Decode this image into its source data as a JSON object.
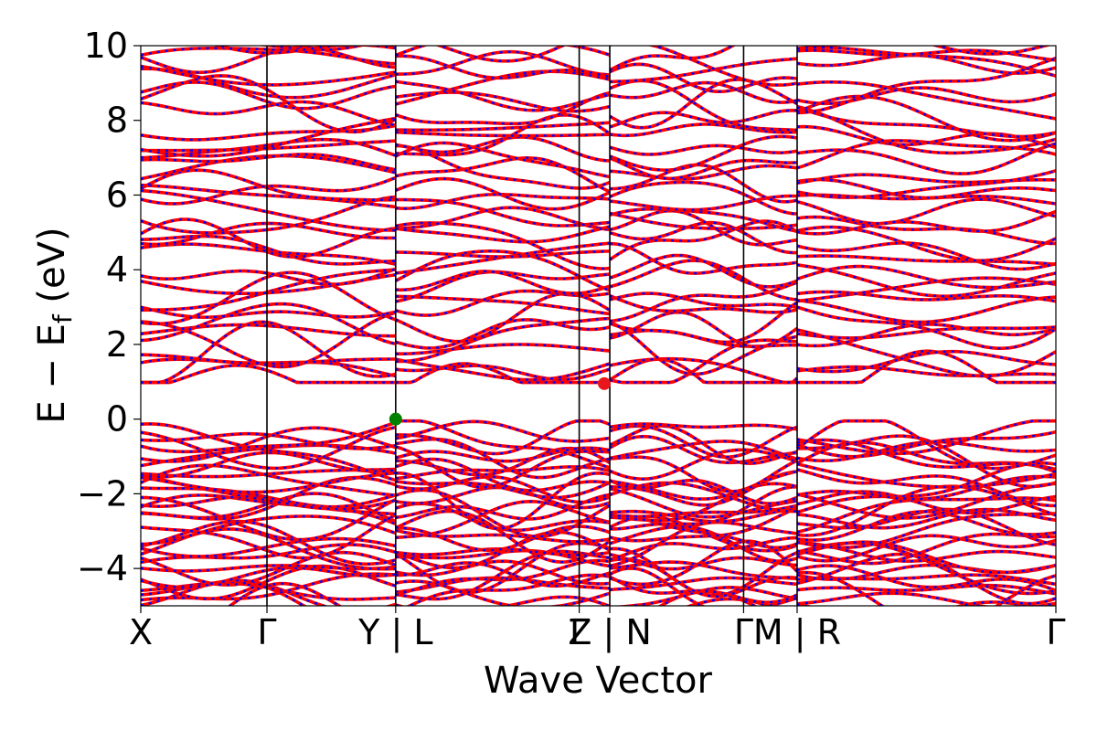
{
  "chart_data": {
    "type": "line",
    "title": "",
    "xlabel": "Wave Vector",
    "ylabel": "E − E",
    "ylabel_subscript": "f",
    "ylabel_unit": " (eV)",
    "ylim": [
      -5,
      10
    ],
    "yticks": [
      {
        "value": -4,
        "label": "−4"
      },
      {
        "value": -2,
        "label": "−2"
      },
      {
        "value": 0,
        "label": "0"
      },
      {
        "value": 2,
        "label": "2"
      },
      {
        "value": 4,
        "label": "4"
      },
      {
        "value": 6,
        "label": "6"
      },
      {
        "value": 8,
        "label": "8"
      },
      {
        "value": 10,
        "label": "10"
      }
    ],
    "kpath": {
      "range": [
        0,
        7.18
      ],
      "segment_breaks": [
        2.0,
        3.68,
        5.15
      ],
      "ticks": [
        {
          "pos": 0.0,
          "label": "X"
        },
        {
          "pos": 0.99,
          "label": "Γ"
        },
        {
          "pos": 2.0,
          "label": "Y | L"
        },
        {
          "pos": 3.44,
          "label": "Γ"
        },
        {
          "pos": 3.68,
          "label": "Z | N"
        },
        {
          "pos": 4.73,
          "label": "Γ"
        },
        {
          "pos": 5.15,
          "label": "M | R"
        },
        {
          "pos": 7.18,
          "label": "Γ"
        }
      ]
    },
    "series": [
      {
        "color": "#ff0000",
        "style": "solid"
      },
      {
        "color": "#0000ff",
        "style": "dotted"
      }
    ],
    "band_edges": {
      "vbm": {
        "x": 2.0,
        "y": 0.0,
        "color": "#008000"
      },
      "cbm": {
        "x": 3.68,
        "y": 0.95,
        "color": "#e8171c"
      }
    },
    "gap_region": [
      0.0,
      0.95
    ],
    "grid": false
  }
}
